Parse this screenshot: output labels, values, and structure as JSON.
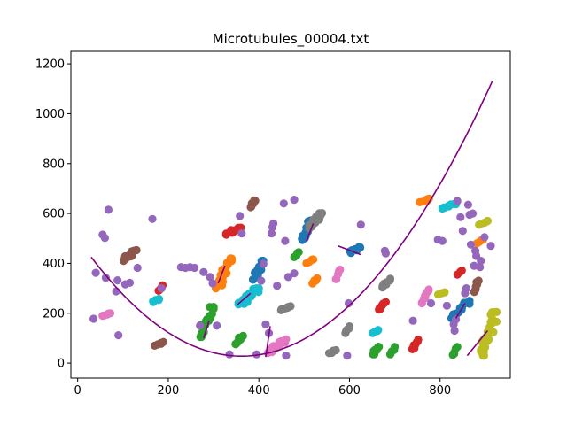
{
  "chart_data": {
    "type": "scatter",
    "title": "Microtubules_00004.txt",
    "xlabel": "",
    "ylabel": "",
    "xlim": [
      -15,
      955
    ],
    "ylim": [
      -60,
      1250
    ],
    "xticks": [
      0,
      200,
      400,
      600,
      800
    ],
    "yticks": [
      0,
      200,
      400,
      600,
      800,
      1000,
      1200
    ],
    "grid": false,
    "legend": "none",
    "colors": {
      "purple": "#9467bd",
      "blue": "#1f77b4",
      "orange": "#ff7f0e",
      "green": "#2ca02c",
      "red": "#d62728",
      "brown": "#8c564b",
      "pink": "#e377c2",
      "gray": "#7f7f7f",
      "olive": "#bcbd22",
      "cyan": "#17becf",
      "fit_curve": "#800080",
      "segment": "#800080"
    },
    "scatter_points": [
      {
        "x": 35,
        "y": 178,
        "c": "purple"
      },
      {
        "x": 40,
        "y": 362,
        "c": "purple"
      },
      {
        "x": 55,
        "y": 515,
        "c": "purple"
      },
      {
        "x": 60,
        "y": 502,
        "c": "purple"
      },
      {
        "x": 62,
        "y": 342,
        "c": "purple"
      },
      {
        "x": 68,
        "y": 615,
        "c": "purple"
      },
      {
        "x": 85,
        "y": 288,
        "c": "purple"
      },
      {
        "x": 88,
        "y": 332,
        "c": "purple"
      },
      {
        "x": 90,
        "y": 112,
        "c": "purple"
      },
      {
        "x": 115,
        "y": 322,
        "c": "purple"
      },
      {
        "x": 105,
        "y": 316,
        "c": "purple"
      },
      {
        "x": 132,
        "y": 382,
        "c": "purple"
      },
      {
        "x": 165,
        "y": 578,
        "c": "purple"
      },
      {
        "x": 185,
        "y": 300,
        "c": "purple"
      },
      {
        "x": 228,
        "y": 385,
        "c": "purple"
      },
      {
        "x": 238,
        "y": 382,
        "c": "purple"
      },
      {
        "x": 248,
        "y": 385,
        "c": "purple"
      },
      {
        "x": 258,
        "y": 382,
        "c": "purple"
      },
      {
        "x": 270,
        "y": 150,
        "c": "purple"
      },
      {
        "x": 278,
        "y": 365,
        "c": "purple"
      },
      {
        "x": 292,
        "y": 345,
        "c": "purple"
      },
      {
        "x": 298,
        "y": 320,
        "c": "purple"
      },
      {
        "x": 307,
        "y": 150,
        "c": "purple"
      },
      {
        "x": 335,
        "y": 35,
        "c": "purple"
      },
      {
        "x": 358,
        "y": 590,
        "c": "purple"
      },
      {
        "x": 362,
        "y": 520,
        "c": "purple"
      },
      {
        "x": 395,
        "y": 35,
        "c": "purple"
      },
      {
        "x": 405,
        "y": 330,
        "c": "purple"
      },
      {
        "x": 410,
        "y": 398,
        "c": "purple"
      },
      {
        "x": 415,
        "y": 155,
        "c": "purple"
      },
      {
        "x": 422,
        "y": 120,
        "c": "purple"
      },
      {
        "x": 428,
        "y": 520,
        "c": "purple"
      },
      {
        "x": 430,
        "y": 545,
        "c": "purple"
      },
      {
        "x": 432,
        "y": 560,
        "c": "purple"
      },
      {
        "x": 440,
        "y": 310,
        "c": "purple"
      },
      {
        "x": 455,
        "y": 640,
        "c": "purple"
      },
      {
        "x": 458,
        "y": 490,
        "c": "purple"
      },
      {
        "x": 460,
        "y": 30,
        "c": "purple"
      },
      {
        "x": 465,
        "y": 345,
        "c": "purple"
      },
      {
        "x": 478,
        "y": 360,
        "c": "purple"
      },
      {
        "x": 478,
        "y": 655,
        "c": "purple"
      },
      {
        "x": 595,
        "y": 30,
        "c": "purple"
      },
      {
        "x": 598,
        "y": 240,
        "c": "purple"
      },
      {
        "x": 625,
        "y": 555,
        "c": "purple"
      },
      {
        "x": 678,
        "y": 450,
        "c": "purple"
      },
      {
        "x": 680,
        "y": 440,
        "c": "purple"
      },
      {
        "x": 740,
        "y": 170,
        "c": "purple"
      },
      {
        "x": 780,
        "y": 240,
        "c": "purple"
      },
      {
        "x": 795,
        "y": 495,
        "c": "purple"
      },
      {
        "x": 805,
        "y": 490,
        "c": "purple"
      },
      {
        "x": 815,
        "y": 230,
        "c": "purple"
      },
      {
        "x": 830,
        "y": 155,
        "c": "purple"
      },
      {
        "x": 832,
        "y": 130,
        "c": "purple"
      },
      {
        "x": 835,
        "y": 175,
        "c": "purple"
      },
      {
        "x": 838,
        "y": 650,
        "c": "purple"
      },
      {
        "x": 845,
        "y": 585,
        "c": "purple"
      },
      {
        "x": 850,
        "y": 530,
        "c": "purple"
      },
      {
        "x": 855,
        "y": 280,
        "c": "purple"
      },
      {
        "x": 858,
        "y": 300,
        "c": "purple"
      },
      {
        "x": 862,
        "y": 635,
        "c": "purple"
      },
      {
        "x": 865,
        "y": 595,
        "c": "purple"
      },
      {
        "x": 868,
        "y": 475,
        "c": "purple"
      },
      {
        "x": 872,
        "y": 600,
        "c": "purple"
      },
      {
        "x": 875,
        "y": 390,
        "c": "purple"
      },
      {
        "x": 878,
        "y": 450,
        "c": "purple"
      },
      {
        "x": 880,
        "y": 430,
        "c": "purple"
      },
      {
        "x": 888,
        "y": 385,
        "c": "purple"
      },
      {
        "x": 890,
        "y": 410,
        "c": "purple"
      },
      {
        "x": 898,
        "y": 505,
        "c": "purple"
      },
      {
        "x": 912,
        "y": 470,
        "c": "purple"
      }
    ],
    "clusters": [
      {
        "c": "brown",
        "x": [
          100,
          130
        ],
        "y": [
          410,
          455
        ],
        "n": 12
      },
      {
        "c": "brown",
        "x": [
          170,
          190
        ],
        "y": [
          70,
          85
        ],
        "n": 6
      },
      {
        "c": "brown",
        "x": [
          380,
          392
        ],
        "y": [
          625,
          655
        ],
        "n": 6
      },
      {
        "c": "brown",
        "x": [
          875,
          885
        ],
        "y": [
          285,
          340
        ],
        "n": 8
      },
      {
        "c": "pink",
        "x": [
          55,
          72
        ],
        "y": [
          190,
          200
        ],
        "n": 5
      },
      {
        "c": "pink",
        "x": [
          420,
          460
        ],
        "y": [
          40,
          95
        ],
        "n": 14
      },
      {
        "c": "pink",
        "x": [
          570,
          580
        ],
        "y": [
          330,
          375
        ],
        "n": 5
      },
      {
        "c": "pink",
        "x": [
          760,
          775
        ],
        "y": [
          240,
          295
        ],
        "n": 10
      },
      {
        "c": "red",
        "x": [
          178,
          188
        ],
        "y": [
          290,
          312
        ],
        "n": 4
      },
      {
        "c": "red",
        "x": [
          328,
          360
        ],
        "y": [
          515,
          545
        ],
        "n": 16
      },
      {
        "c": "red",
        "x": [
          665,
          680
        ],
        "y": [
          210,
          245
        ],
        "n": 8
      },
      {
        "c": "red",
        "x": [
          738,
          752
        ],
        "y": [
          55,
          95
        ],
        "n": 8
      },
      {
        "c": "red",
        "x": [
          838,
          848
        ],
        "y": [
          355,
          372
        ],
        "n": 3
      },
      {
        "c": "cyan",
        "x": [
          165,
          180
        ],
        "y": [
          245,
          258
        ],
        "n": 5
      },
      {
        "c": "cyan",
        "x": [
          355,
          400
        ],
        "y": [
          225,
          300
        ],
        "n": 18
      },
      {
        "c": "cyan",
        "x": [
          650,
          665
        ],
        "y": [
          120,
          135
        ],
        "n": 4
      },
      {
        "c": "cyan",
        "x": [
          805,
          835
        ],
        "y": [
          620,
          640
        ],
        "n": 8
      },
      {
        "c": "green",
        "x": [
          270,
          300
        ],
        "y": [
          105,
          225
        ],
        "n": 22
      },
      {
        "c": "green",
        "x": [
          345,
          365
        ],
        "y": [
          75,
          110
        ],
        "n": 8
      },
      {
        "c": "green",
        "x": [
          478,
          488
        ],
        "y": [
          425,
          445
        ],
        "n": 4
      },
      {
        "c": "green",
        "x": [
          652,
          665
        ],
        "y": [
          35,
          70
        ],
        "n": 8
      },
      {
        "c": "green",
        "x": [
          690,
          700
        ],
        "y": [
          35,
          65
        ],
        "n": 5
      },
      {
        "c": "green",
        "x": [
          828,
          838
        ],
        "y": [
          30,
          65
        ],
        "n": 5
      },
      {
        "c": "orange",
        "x": [
          305,
          340
        ],
        "y": [
          300,
          420
        ],
        "n": 25
      },
      {
        "c": "orange",
        "x": [
          505,
          520
        ],
        "y": [
          400,
          418
        ],
        "n": 4
      },
      {
        "c": "orange",
        "x": [
          518,
          530
        ],
        "y": [
          318,
          340
        ],
        "n": 5
      },
      {
        "c": "orange",
        "x": [
          755,
          778
        ],
        "y": [
          645,
          660
        ],
        "n": 6
      },
      {
        "c": "orange",
        "x": [
          880,
          895
        ],
        "y": [
          480,
          495
        ],
        "n": 4
      },
      {
        "c": "blue",
        "x": [
          385,
          410
        ],
        "y": [
          335,
          410
        ],
        "n": 20
      },
      {
        "c": "blue",
        "x": [
          495,
          515
        ],
        "y": [
          490,
          575
        ],
        "n": 16
      },
      {
        "c": "blue",
        "x": [
          600,
          625
        ],
        "y": [
          440,
          470
        ],
        "n": 8
      },
      {
        "c": "blue",
        "x": [
          825,
          865
        ],
        "y": [
          180,
          250
        ],
        "n": 18
      },
      {
        "c": "gray",
        "x": [
          445,
          470
        ],
        "y": [
          212,
          228
        ],
        "n": 8
      },
      {
        "c": "gray",
        "x": [
          510,
          540
        ],
        "y": [
          540,
          605
        ],
        "n": 14
      },
      {
        "c": "gray",
        "x": [
          555,
          570
        ],
        "y": [
          40,
          52
        ],
        "n": 5
      },
      {
        "c": "gray",
        "x": [
          590,
          600
        ],
        "y": [
          120,
          150
        ],
        "n": 5
      },
      {
        "c": "gray",
        "x": [
          670,
          690
        ],
        "y": [
          300,
          340
        ],
        "n": 8
      },
      {
        "c": "olive",
        "x": [
          795,
          810
        ],
        "y": [
          275,
          285
        ],
        "n": 3
      },
      {
        "c": "olive",
        "x": [
          885,
          905
        ],
        "y": [
          555,
          570
        ],
        "n": 6
      },
      {
        "c": "olive",
        "x": [
          890,
          925
        ],
        "y": [
          30,
          205
        ],
        "n": 30
      }
    ],
    "fit_curve": {
      "type": "quadratic",
      "x_range": [
        30,
        915
      ],
      "vertex_x": 362,
      "vertex_y": 28,
      "a": 0.0036
    },
    "segments": [
      {
        "x1": 278,
        "y1": 100,
        "x2": 290,
        "y2": 170
      },
      {
        "x1": 310,
        "y1": 320,
        "x2": 325,
        "y2": 390
      },
      {
        "x1": 353,
        "y1": 235,
        "x2": 382,
        "y2": 280
      },
      {
        "x1": 415,
        "y1": 25,
        "x2": 425,
        "y2": 148
      },
      {
        "x1": 505,
        "y1": 490,
        "x2": 520,
        "y2": 560
      },
      {
        "x1": 575,
        "y1": 470,
        "x2": 625,
        "y2": 435
      },
      {
        "x1": 835,
        "y1": 180,
        "x2": 855,
        "y2": 240
      },
      {
        "x1": 860,
        "y1": 30,
        "x2": 905,
        "y2": 130
      }
    ]
  }
}
